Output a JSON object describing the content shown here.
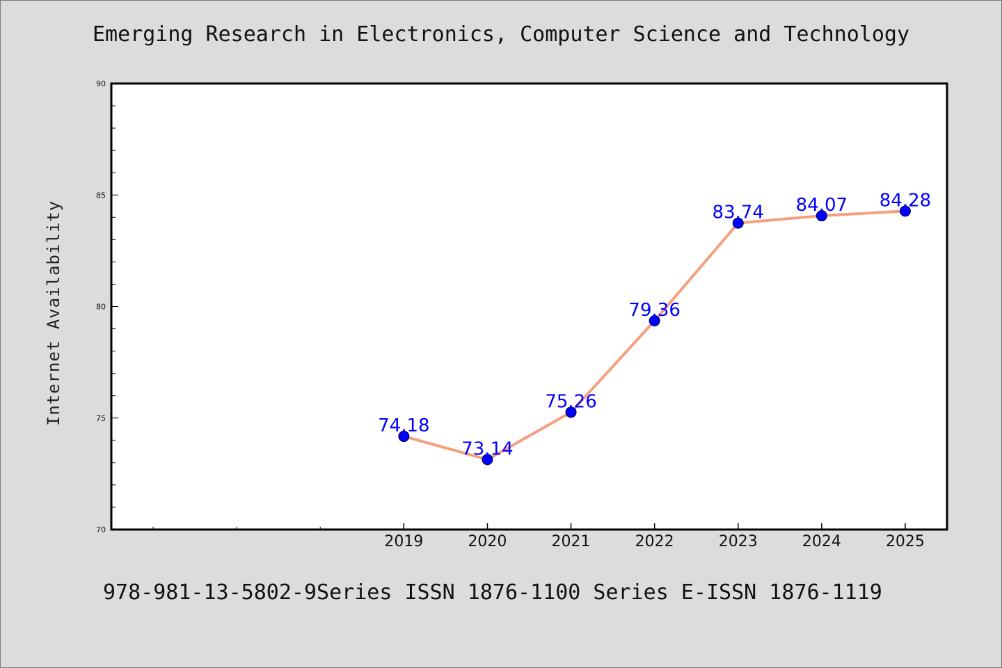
{
  "header": {
    "title": "Emerging Research in Electronics, Computer Science and Technology"
  },
  "footer": {
    "text": "978-981-13-5802-9Series ISSN 1876-1100 Series E-ISSN 1876-1119"
  },
  "colors": {
    "background": "#dcdcdc",
    "plot_background": "#ffffff",
    "line": "#f4a07e",
    "marker": "#0000ff",
    "data_label": "#0000ff"
  },
  "chart_data": {
    "type": "line",
    "title": "Emerging Research in Electronics, Computer Science and Technology",
    "xlabel": "",
    "ylabel": "Internet Availability",
    "x": [
      "2019",
      "2020",
      "2021",
      "2022",
      "2023",
      "2024",
      "2025"
    ],
    "series": [
      {
        "values": [
          74.18,
          73.14,
          75.26,
          79.36,
          83.74,
          84.07,
          84.28
        ],
        "data_labels": [
          "74.18",
          "73.14",
          "75.26",
          "79.36",
          "83.74",
          "84.07",
          "84.28"
        ]
      }
    ],
    "x_range": [
      2015.5,
      2025.5
    ],
    "ylim": [
      70,
      90
    ],
    "y_ticks": [
      "70",
      "75",
      "80",
      "85",
      "90"
    ],
    "grid": false,
    "legend": "none"
  }
}
